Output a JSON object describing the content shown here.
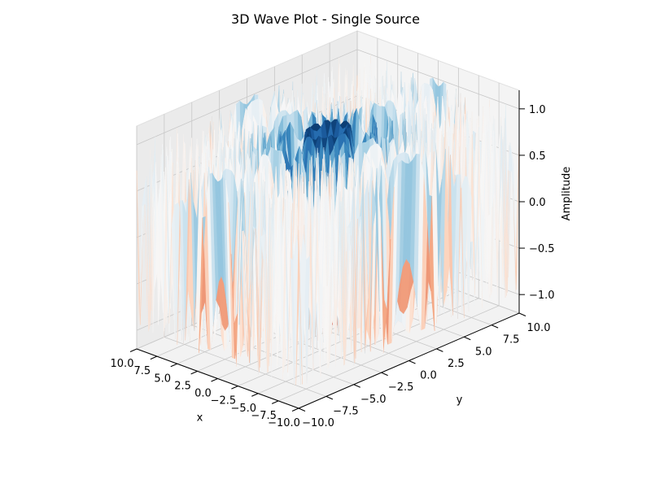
{
  "chart_data": {
    "type": "surface",
    "title": "3D Wave Plot - Single Source",
    "xlabel": "x",
    "ylabel": "y",
    "zlabel": "Amplitude",
    "xlim": [
      -10,
      10
    ],
    "ylim": [
      -10,
      10
    ],
    "zlim": [
      -1.2,
      1.2
    ],
    "x_ticks": [
      -10,
      -7.5,
      -5,
      -2.5,
      0,
      2.5,
      5,
      7.5,
      10
    ],
    "y_ticks": [
      -10,
      -7.5,
      -5,
      -2.5,
      0,
      2.5,
      5,
      7.5,
      10
    ],
    "z_ticks": [
      -1,
      -0.5,
      0,
      0.5,
      1
    ],
    "x_tick_labels": [
      "−10.0",
      "−7.5",
      "−5.0",
      "−2.5",
      "0.0",
      "2.5",
      "5.0",
      "7.5",
      "10.0"
    ],
    "y_tick_labels": [
      "−10.0",
      "−7.5",
      "−5.0",
      "−2.5",
      "0.0",
      "2.5",
      "5.0",
      "7.5",
      "10.0"
    ],
    "z_tick_labels": [
      "−1.0",
      "−0.5",
      "0.0",
      "0.5",
      "1.0"
    ],
    "colormap": [
      "#67001f",
      "#b2182b",
      "#d6604d",
      "#f4a582",
      "#fddbc7",
      "#f7f7f7",
      "#d1e5f0",
      "#92c5de",
      "#4393c3",
      "#2166ac",
      "#053061"
    ],
    "grid": true
  }
}
